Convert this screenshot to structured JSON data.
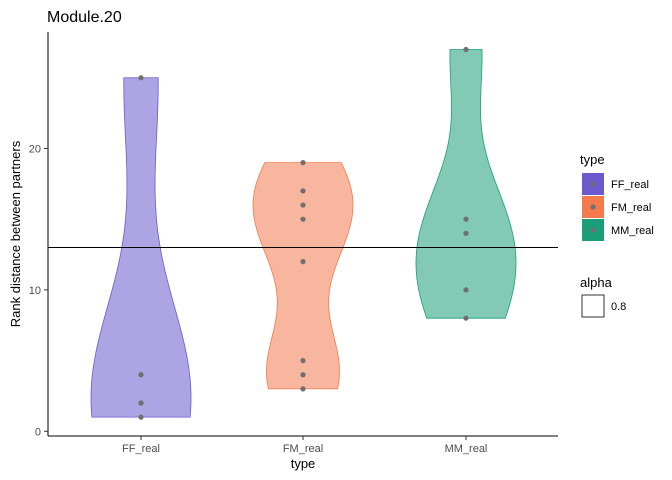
{
  "chart_data": {
    "type": "violin",
    "title": "Module.20",
    "xlabel": "type",
    "ylabel": "Rank distance between partners",
    "categories": [
      "FF_real",
      "FM_real",
      "MM_real"
    ],
    "ylim": [
      0,
      28
    ],
    "yticks": [
      0,
      10,
      20
    ],
    "hline": 13,
    "grid": false,
    "series": [
      {
        "name": "FF_real",
        "color": "#6A5ACD",
        "points": [
          1,
          2,
          4,
          25
        ]
      },
      {
        "name": "FM_real",
        "color": "#F47A4E",
        "points": [
          3,
          4,
          5,
          12,
          15,
          16,
          17,
          19
        ]
      },
      {
        "name": "MM_real",
        "color": "#1B9E77",
        "points": [
          8,
          10,
          14,
          15,
          27
        ]
      }
    ],
    "legend": {
      "placement": "right",
      "type_title": "type",
      "alpha_title": "alpha",
      "alpha_value": "0.8"
    }
  }
}
